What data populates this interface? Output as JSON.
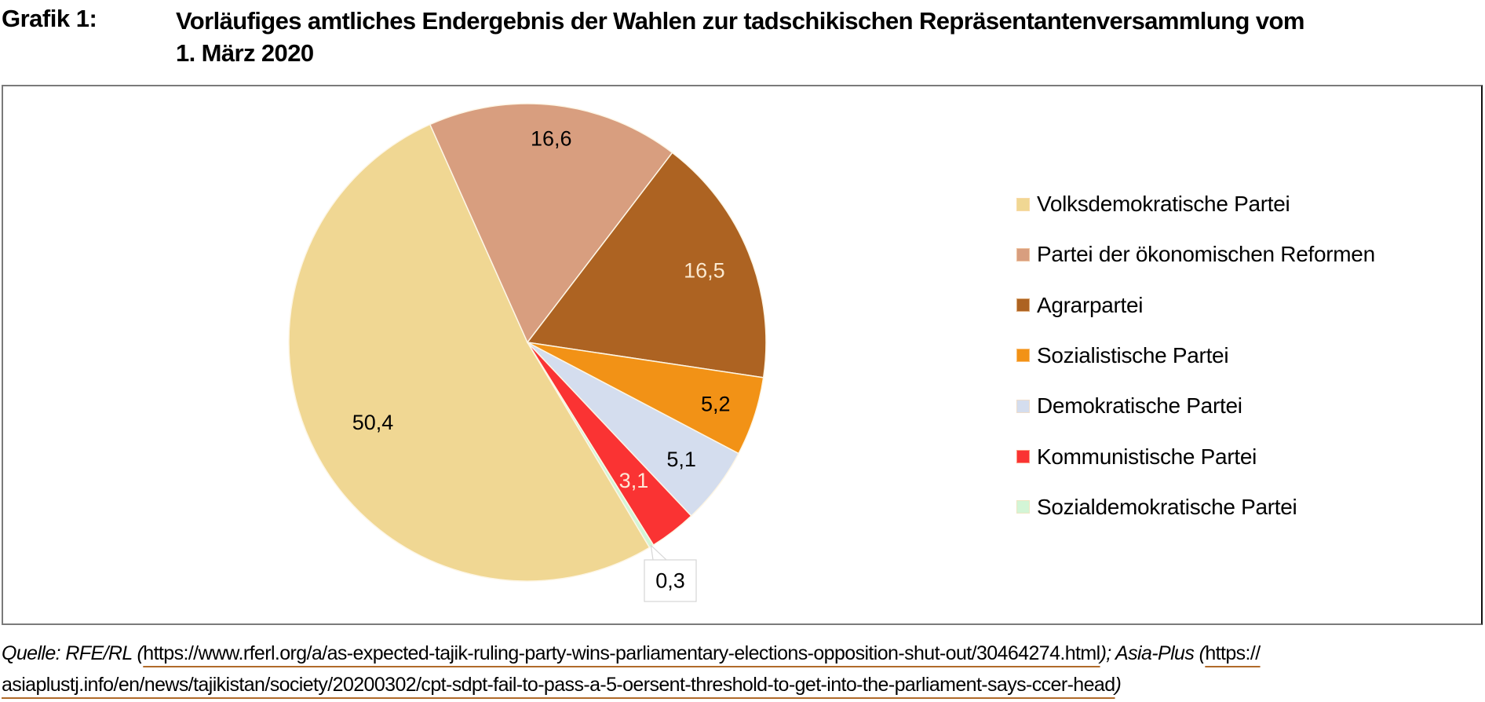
{
  "figure": {
    "label": "Grafik 1:",
    "title_line1": "Vorläufiges amtliches Endergebnis der Wahlen zur tadschikischen Repräsentantenversammlung vom",
    "title_line2": "1. März 2020"
  },
  "chart_data": {
    "type": "pie",
    "title": "Vorläufiges amtliches Endergebnis der Wahlen zur tadschikischen Repräsentantenversammlung vom 1. März 2020",
    "unit": "%",
    "legend_position": "right",
    "slices": [
      {
        "name": "Volksdemokratische Partei",
        "value": 50.4,
        "label": "50,4",
        "color": "#f0d793",
        "label_color": "#000000"
      },
      {
        "name": "Partei der ökonomischen Reformen",
        "value": 16.6,
        "label": "16,6",
        "color": "#d89e7f",
        "label_color": "#000000"
      },
      {
        "name": "Agrarpartei",
        "value": 16.5,
        "label": "16,5",
        "color": "#ad6322",
        "label_color": "#fbe9d0"
      },
      {
        "name": "Sozialistische Partei",
        "value": 5.2,
        "label": "5,2",
        "color": "#f29216",
        "label_color": "#000000"
      },
      {
        "name": "Demokratische Partei",
        "value": 5.1,
        "label": "5,1",
        "color": "#d4ddee",
        "label_color": "#000000"
      },
      {
        "name": "Kommunistische Partei",
        "value": 3.1,
        "label": "3,1",
        "color": "#fa3333",
        "label_color": "#fde7d6"
      },
      {
        "name": "Sozialdemokratische Partei",
        "value": 0.3,
        "label": "0,3",
        "color": "#d3f5d6",
        "label_color": "#000000",
        "callout": true
      }
    ]
  },
  "source": {
    "prefix": "Quelle: RFE/RL (",
    "url1": "https://www.rferl.org/a/as-expected-tajik-ruling-party-wins-parliamentary-elections-opposition-shut-out/30464274.html",
    "mid": "); Asia-Plus (",
    "url2_part1": "https://",
    "url2_part2": "asiaplustj.info/en/news/tajikistan/society/20200302/cpt-sdpt-fail-to-pass-a-5-oersent-threshold-to-get-into-the-parliament-says-ccer-head",
    "suffix": ")"
  }
}
